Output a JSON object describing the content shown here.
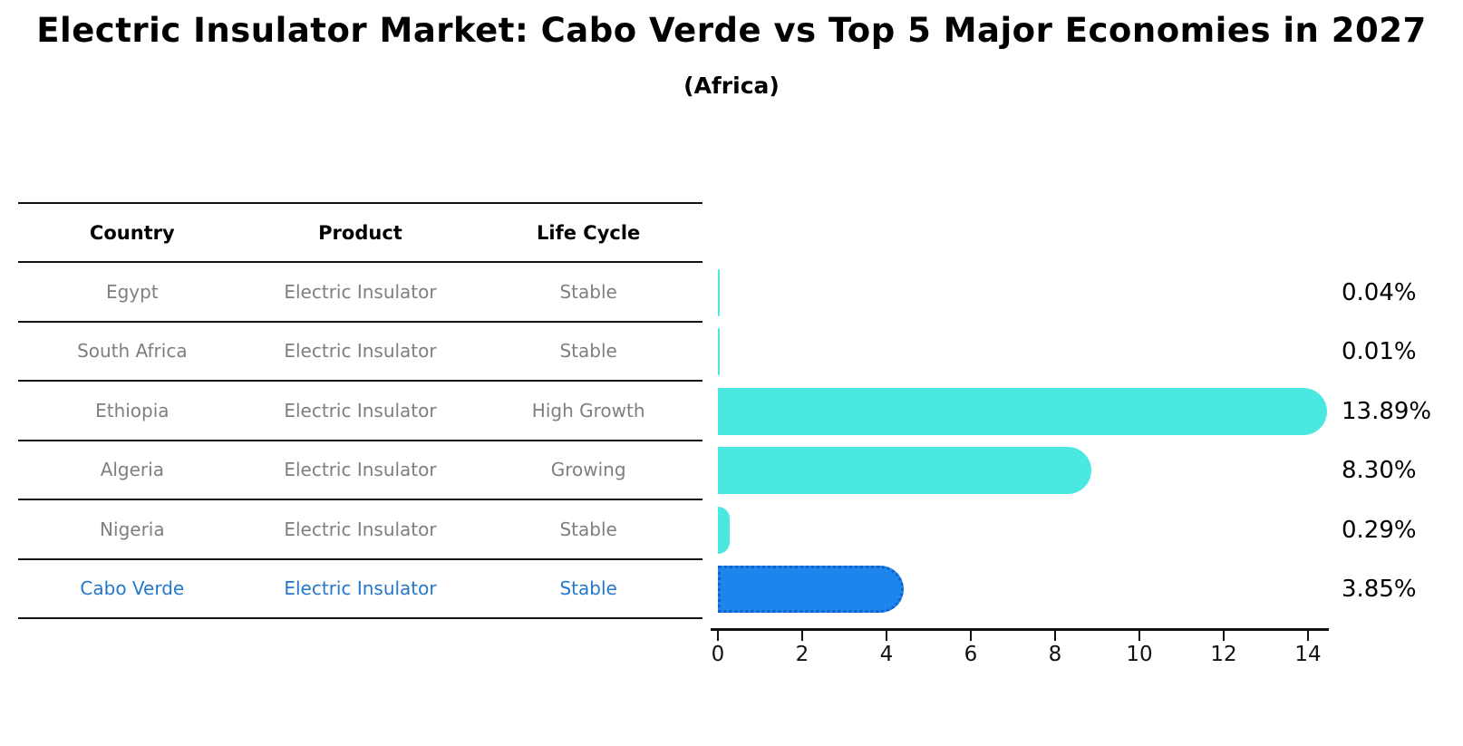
{
  "title": "Electric Insulator Market: Cabo Verde vs Top 5 Major Economies in 2027",
  "subtitle": "(Africa)",
  "table": {
    "headers": [
      "Country",
      "Product",
      "Life Cycle"
    ],
    "rows": [
      {
        "country": "Egypt",
        "product": "Electric Insulator",
        "life_cycle": "Stable",
        "highlighted": false
      },
      {
        "country": "South Africa",
        "product": "Electric Insulator",
        "life_cycle": "Stable",
        "highlighted": false
      },
      {
        "country": "Ethiopia",
        "product": "Electric Insulator",
        "life_cycle": "High Growth",
        "highlighted": false
      },
      {
        "country": "Algeria",
        "product": "Electric Insulator",
        "life_cycle": "Growing",
        "highlighted": false
      },
      {
        "country": "Nigeria",
        "product": "Electric Insulator",
        "life_cycle": "Stable",
        "highlighted": false
      },
      {
        "country": "Cabo Verde",
        "product": "Electric Insulator",
        "life_cycle": "Stable",
        "highlighted": true
      }
    ]
  },
  "chart_data": {
    "type": "bar",
    "orientation": "horizontal",
    "title": "Electric Insulator Market: Cabo Verde vs Top 5 Major Economies in 2027",
    "subtitle": "(Africa)",
    "categories": [
      "Egypt",
      "South Africa",
      "Ethiopia",
      "Algeria",
      "Nigeria",
      "Cabo Verde"
    ],
    "values": [
      0.04,
      0.01,
      13.89,
      8.3,
      0.29,
      3.85
    ],
    "value_labels": [
      "0.04%",
      "0.01%",
      "13.89%",
      "8.30%",
      "0.29%",
      "3.85%"
    ],
    "x_ticks": [
      0,
      2,
      4,
      6,
      8,
      10,
      12,
      14
    ],
    "xlim": [
      0,
      14.6
    ],
    "grid": false,
    "legend": false,
    "bar_color": "#4be8e1",
    "highlight_bar_color": "#1e85ec",
    "highlight_bar_border_color": "#1262cc",
    "highlight_index": 5
  },
  "colors": {
    "background": "#ffffff",
    "heading_text": "#000000",
    "table_row_text": "#7f7f7f",
    "highlight_row_text": "#2478cb",
    "axis_line": "#111111"
  }
}
